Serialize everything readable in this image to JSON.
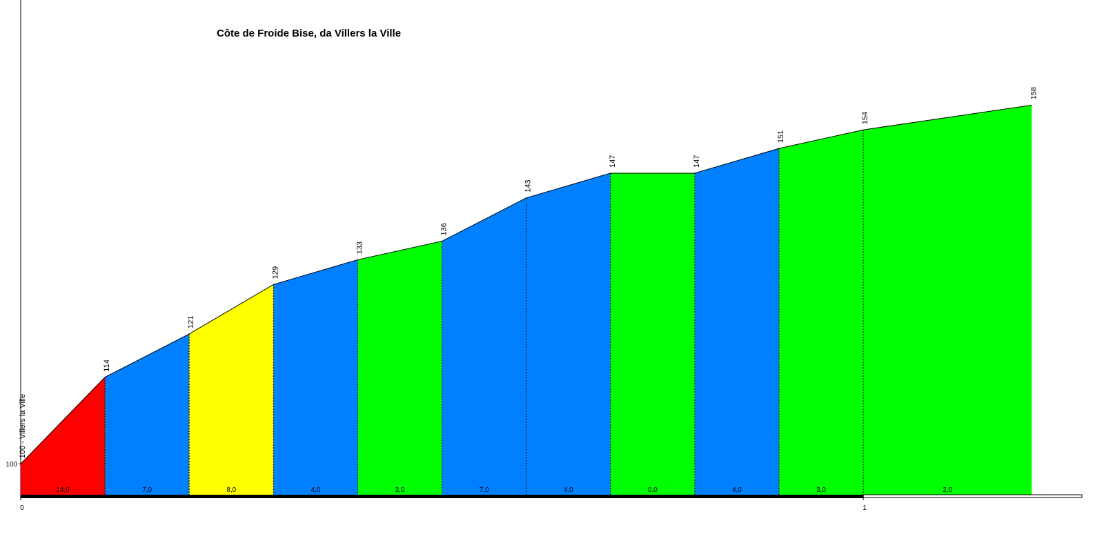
{
  "chart_data": {
    "type": "profile",
    "title": "Côte de Froide Bise, da Villers la Ville",
    "x": [
      0,
      0.1,
      0.2,
      0.3,
      0.4,
      0.5,
      0.6,
      0.7,
      0.8,
      0.9,
      1.0,
      1.2
    ],
    "values": [
      100,
      114,
      121,
      129,
      133,
      136,
      143,
      147,
      147,
      151,
      154,
      158
    ],
    "value_labels": [
      "100 - Villers la Ville",
      "114",
      "121",
      "129",
      "133",
      "136",
      "143",
      "147",
      "147",
      "151",
      "154",
      "158"
    ],
    "grades": {
      "values": [
        14,
        7,
        8,
        4,
        3,
        7,
        4,
        0,
        4,
        3,
        2
      ],
      "labels": [
        "14,0",
        "7,0",
        "8,0",
        "4,0",
        "3,0",
        "7,0",
        "4,0",
        "0,0",
        "4,0",
        "3,0",
        "2,0"
      ],
      "colors": [
        "#ff0000",
        "#0080ff",
        "#ffff00",
        "#0080ff",
        "#00ff00",
        "#0080ff",
        "#0080ff",
        "#00ff00",
        "#0080ff",
        "#00ff00",
        "#00ff00"
      ]
    },
    "xlim": [
      0,
      1.28
    ],
    "ylim": [
      95,
      175
    ],
    "xticks": [
      0,
      1
    ],
    "yticks": [
      100
    ]
  }
}
